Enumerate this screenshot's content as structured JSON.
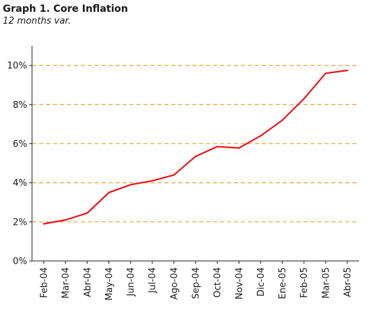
{
  "chart_data": {
    "type": "line",
    "title": "Graph 1. Core Inflation",
    "subtitle": "12 months var.",
    "xlabel": "",
    "ylabel": "",
    "categories": [
      "Feb-04",
      "Mar-04",
      "Abr-04",
      "May-04",
      "Jun-04",
      "Jul-04",
      "Ago-04",
      "Sep-04",
      "Oct-04",
      "Nov-04",
      "Dic-04",
      "Ene-05",
      "Feb-05",
      "Mar-05",
      "Abr-05"
    ],
    "series": [
      {
        "values": [
          1.9,
          2.1,
          2.45,
          3.5,
          3.9,
          4.1,
          4.4,
          5.35,
          5.85,
          5.78,
          6.4,
          7.2,
          8.3,
          9.6,
          9.75
        ]
      }
    ],
    "ylim": [
      0,
      11
    ],
    "yticks": [
      0,
      2,
      4,
      6,
      8,
      10
    ],
    "ytick_labels": [
      "0%",
      "2%",
      "4%",
      "6%",
      "8%",
      "10%"
    ],
    "grid": "horizontal dashed",
    "legend": "none",
    "colors": {
      "line": "#e8161b",
      "grid": "#e8a23c",
      "axis": "#1a1a1a"
    }
  }
}
